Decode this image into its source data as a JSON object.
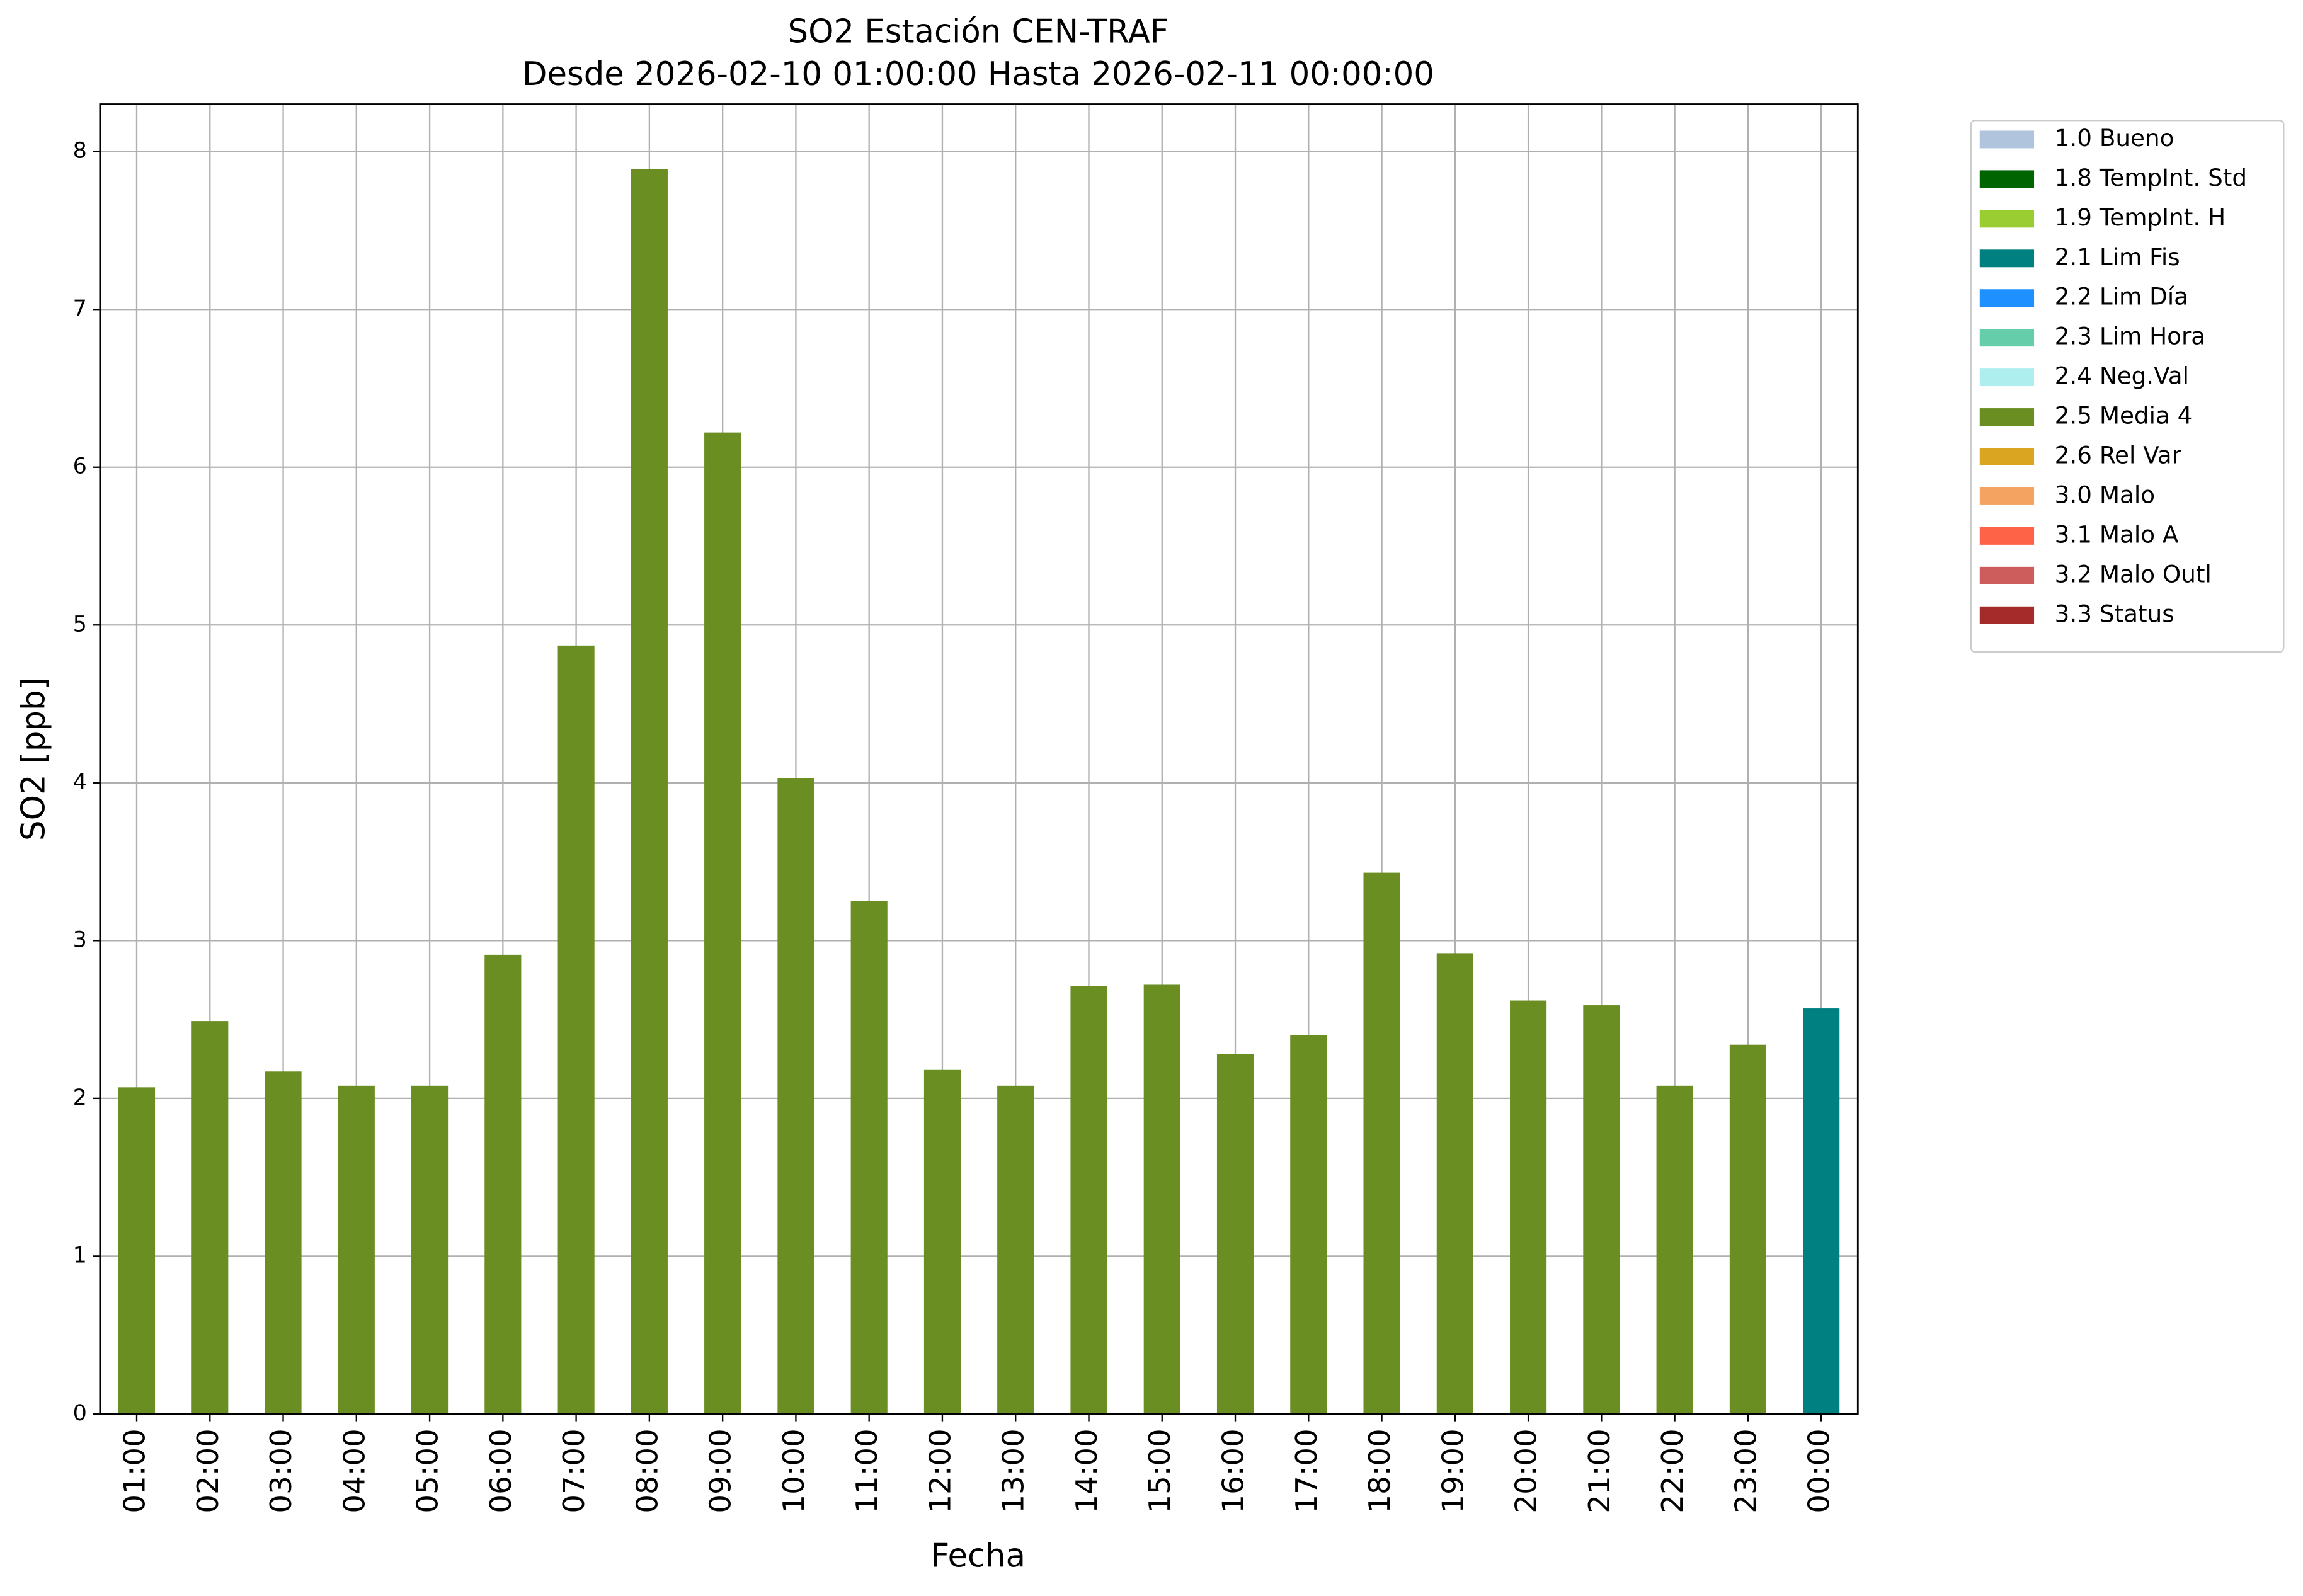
{
  "chart_data": {
    "type": "bar",
    "title": [
      "SO2 Estación CEN-TRAF",
      "Desde 2026-02-10 01:00:00 Hasta 2026-02-11 00:00:00"
    ],
    "x_label": "Fecha",
    "y_label": "SO2 [ppb]",
    "categories": [
      "01:00",
      "02:00",
      "03:00",
      "04:00",
      "05:00",
      "06:00",
      "07:00",
      "08:00",
      "09:00",
      "10:00",
      "11:00",
      "12:00",
      "13:00",
      "14:00",
      "15:00",
      "16:00",
      "17:00",
      "18:00",
      "19:00",
      "20:00",
      "21:00",
      "22:00",
      "23:00",
      "00:00"
    ],
    "series": [
      {
        "name": "1.0 Bueno",
        "color": "#b0c4de",
        "values": [
          null,
          null,
          null,
          null,
          null,
          null,
          null,
          null,
          null,
          null,
          null,
          null,
          null,
          null,
          null,
          null,
          null,
          null,
          null,
          null,
          null,
          null,
          null,
          null
        ]
      },
      {
        "name": "1.8 TempInt. Std",
        "color": "#006400",
        "values": [
          null,
          null,
          null,
          null,
          null,
          null,
          null,
          null,
          null,
          null,
          null,
          null,
          null,
          null,
          null,
          null,
          null,
          null,
          null,
          null,
          null,
          null,
          null,
          null
        ]
      },
      {
        "name": "1.9 TempInt. H",
        "color": "#9acd32",
        "values": [
          null,
          null,
          null,
          null,
          null,
          null,
          null,
          null,
          null,
          null,
          null,
          null,
          null,
          null,
          null,
          null,
          null,
          null,
          null,
          null,
          null,
          null,
          null,
          null
        ]
      },
      {
        "name": "2.1 Lim Fis",
        "color": "#008080",
        "values": [
          null,
          null,
          null,
          null,
          null,
          null,
          null,
          null,
          null,
          null,
          null,
          null,
          null,
          null,
          null,
          null,
          null,
          null,
          null,
          null,
          null,
          null,
          null,
          2.57
        ]
      },
      {
        "name": "2.2 Lim Día",
        "color": "#1e90ff",
        "values": [
          null,
          null,
          null,
          null,
          null,
          null,
          null,
          null,
          null,
          null,
          null,
          null,
          null,
          null,
          null,
          null,
          null,
          null,
          null,
          null,
          null,
          null,
          null,
          null
        ]
      },
      {
        "name": "2.3 Lim Hora",
        "color": "#66cdaa",
        "values": [
          null,
          null,
          null,
          null,
          null,
          null,
          null,
          null,
          null,
          null,
          null,
          null,
          null,
          null,
          null,
          null,
          null,
          null,
          null,
          null,
          null,
          null,
          null,
          null
        ]
      },
      {
        "name": "2.4 Neg.Val",
        "color": "#afeeee",
        "values": [
          null,
          null,
          null,
          null,
          null,
          null,
          null,
          null,
          null,
          null,
          null,
          null,
          null,
          null,
          null,
          null,
          null,
          null,
          null,
          null,
          null,
          null,
          null,
          null
        ]
      },
      {
        "name": "2.5 Media 4",
        "color": "#6b8e23",
        "values": [
          2.07,
          2.49,
          2.17,
          2.08,
          2.08,
          2.91,
          4.87,
          7.89,
          6.22,
          4.03,
          3.25,
          2.18,
          2.08,
          2.71,
          2.72,
          2.28,
          2.4,
          3.43,
          2.92,
          2.62,
          2.59,
          2.08,
          2.34,
          null
        ]
      },
      {
        "name": "2.6 Rel Var",
        "color": "#daa520",
        "values": [
          null,
          null,
          null,
          null,
          null,
          null,
          null,
          null,
          null,
          null,
          null,
          null,
          null,
          null,
          null,
          null,
          null,
          null,
          null,
          null,
          null,
          null,
          null,
          null
        ]
      },
      {
        "name": "3.0 Malo",
        "color": "#f4a460",
        "values": [
          null,
          null,
          null,
          null,
          null,
          null,
          null,
          null,
          null,
          null,
          null,
          null,
          null,
          null,
          null,
          null,
          null,
          null,
          null,
          null,
          null,
          null,
          null,
          null
        ]
      },
      {
        "name": "3.1 Malo A",
        "color": "#ff6347",
        "values": [
          null,
          null,
          null,
          null,
          null,
          null,
          null,
          null,
          null,
          null,
          null,
          null,
          null,
          null,
          null,
          null,
          null,
          null,
          null,
          null,
          null,
          null,
          null,
          null
        ]
      },
      {
        "name": "3.2 Malo Outl",
        "color": "#cd5c5c",
        "values": [
          null,
          null,
          null,
          null,
          null,
          null,
          null,
          null,
          null,
          null,
          null,
          null,
          null,
          null,
          null,
          null,
          null,
          null,
          null,
          null,
          null,
          null,
          null,
          null
        ]
      },
      {
        "name": "3.3 Status",
        "color": "#a52a2a",
        "values": [
          null,
          null,
          null,
          null,
          null,
          null,
          null,
          null,
          null,
          null,
          null,
          null,
          null,
          null,
          null,
          null,
          null,
          null,
          null,
          null,
          null,
          null,
          null,
          null
        ]
      }
    ],
    "ylim": [
      0,
      8.3
    ],
    "yticks": [
      0,
      1,
      2,
      3,
      4,
      5,
      6,
      7,
      8
    ],
    "grid": true,
    "legend": "outside-upper-right"
  }
}
